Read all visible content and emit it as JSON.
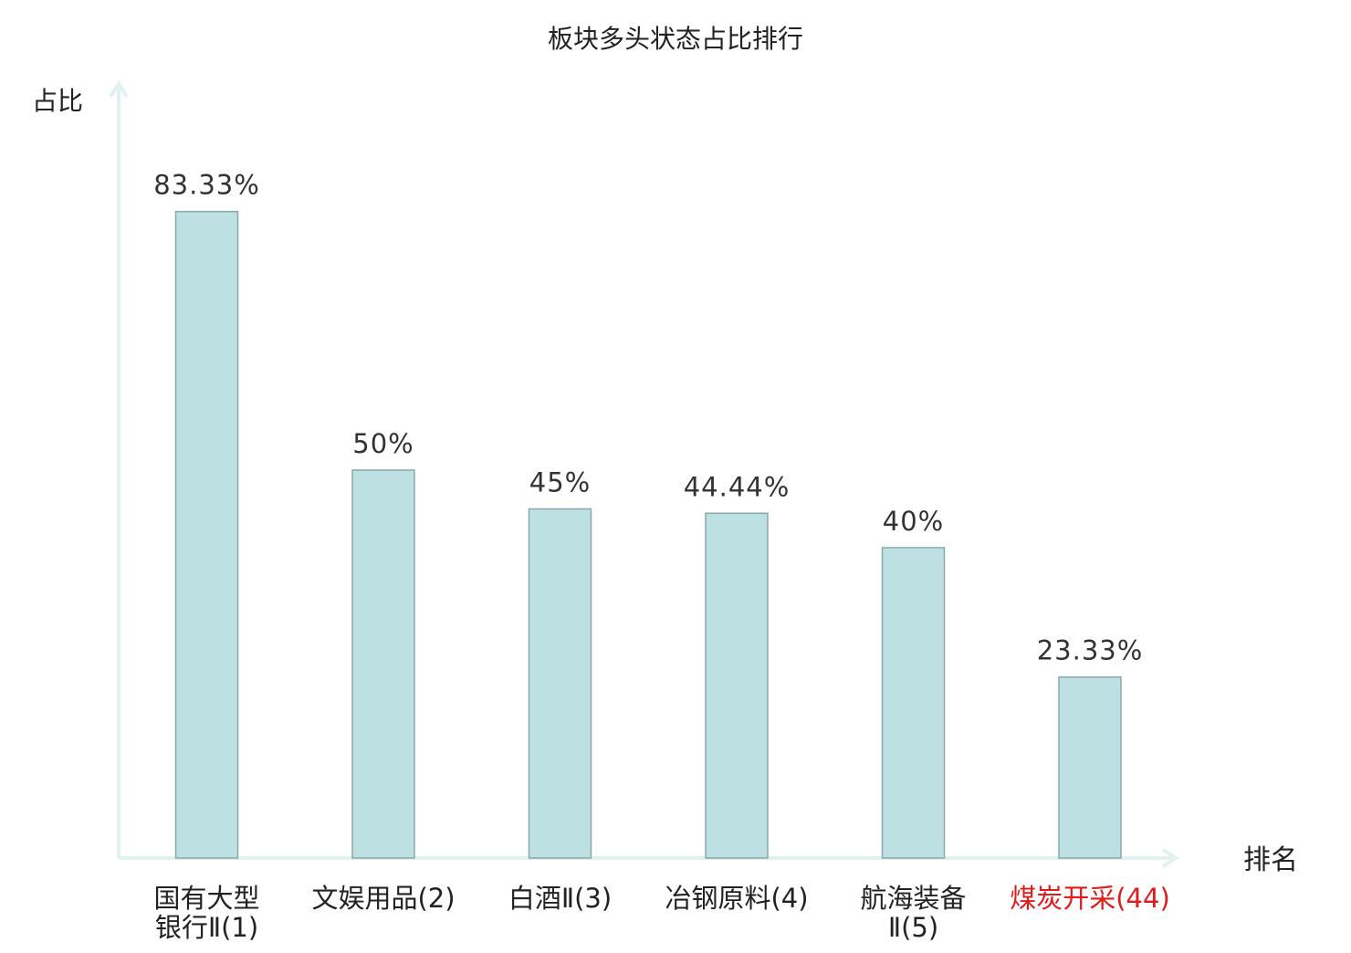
{
  "chart_data": {
    "type": "bar",
    "title": "板块多头状态占比排行",
    "ylabel": "占比",
    "xlabel": "排名",
    "categories": [
      "国有大型银行Ⅱ(1)",
      "文娱用品(2)",
      "白酒Ⅱ(3)",
      "冶钢原料(4)",
      "航海装备Ⅱ(5)",
      "煤炭开采(44)"
    ],
    "category_label_lines": [
      [
        "国有大型",
        "银行Ⅱ(1)"
      ],
      [
        "文娱用品(2)"
      ],
      [
        "白酒Ⅱ(3)"
      ],
      [
        "冶钢原料(4)"
      ],
      [
        "航海装备",
        "Ⅱ(5)"
      ],
      [
        "煤炭开采(44)"
      ]
    ],
    "values": [
      83.33,
      50,
      45,
      44.44,
      40,
      23.33
    ],
    "value_labels": [
      "83.33%",
      "50%",
      "45%",
      "44.44%",
      "40%",
      "23.33%"
    ],
    "highlight": [
      false,
      false,
      false,
      false,
      false,
      true
    ],
    "ylim": [
      0,
      100
    ],
    "grid": false,
    "legend": "none",
    "colors": {
      "bar_fill": "#bde0e3",
      "bar_stroke": "#8aa8ab",
      "axis": "#e0f2ef",
      "text": "#222222",
      "value_label": "#333333",
      "highlight_text": "#e41a1a"
    }
  }
}
